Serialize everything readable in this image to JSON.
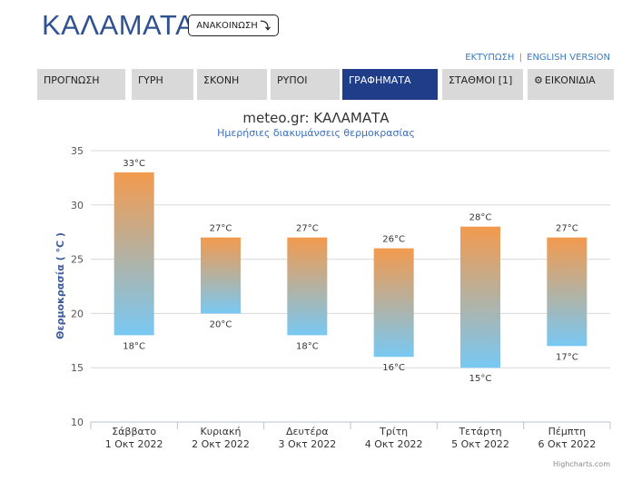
{
  "header": {
    "city": "ΚΑΛΑΜΑΤΑ",
    "notice_button": "ΑΝΑΚΟΙΝΩΣΗ",
    "notice_icon": "arrow-turn-down-icon",
    "links": {
      "print": "ΕΚΤΥΠΩΣΗ",
      "separator": "|",
      "english": "ENGLISH VERSION"
    }
  },
  "tabs": [
    {
      "label": "ΠΡΟΓΝΩΣΗ",
      "active": false
    },
    {
      "label": "ΓΥΡΗ",
      "active": false
    },
    {
      "label": "ΣΚΟΝΗ",
      "active": false
    },
    {
      "label": "ΡΥΠΟΙ",
      "active": false
    },
    {
      "label": "ΓΡΑΦΗΜΑΤΑ",
      "active": true
    },
    {
      "label": "ΣΤΑΘΜΟΙ [1]",
      "active": false
    },
    {
      "label": "ΕΙΚΟΝΙΔΙΑ",
      "active": false,
      "icon": "gear-icon"
    }
  ],
  "colors": {
    "brand": "#2f5290",
    "active_tab": "#1f3d89",
    "inactive_tab": "#d9d9d9",
    "bar_top": "#f39a4e",
    "bar_bottom": "#78c8f3"
  },
  "chart_data": {
    "type": "bar",
    "subtype": "columnrange",
    "title": "meteo.gr: ΚΑΛΑΜΑΤΑ",
    "subtitle": "Ημερήσιες διακυμάνσεις θερμοκρασίας",
    "ylabel": "Θερμοκρασία ( °C )",
    "ylim": [
      10,
      35
    ],
    "yticks": [
      10,
      15,
      20,
      25,
      30,
      35
    ],
    "grid": true,
    "unit": "°C",
    "categories": [
      {
        "day": "Σάββατο",
        "date": "1 Οκτ 2022"
      },
      {
        "day": "Κυριακή",
        "date": "2 Οκτ 2022"
      },
      {
        "day": "Δευτέρα",
        "date": "3 Οκτ 2022"
      },
      {
        "day": "Τρίτη",
        "date": "4 Οκτ 2022"
      },
      {
        "day": "Τετάρτη",
        "date": "5 Οκτ 2022"
      },
      {
        "day": "Πέμπτη",
        "date": "6 Οκτ 2022"
      }
    ],
    "max": [
      33,
      27,
      27,
      26,
      28,
      27
    ],
    "min": [
      18,
      20,
      18,
      16,
      15,
      17
    ]
  },
  "credits": "Highcharts.com"
}
